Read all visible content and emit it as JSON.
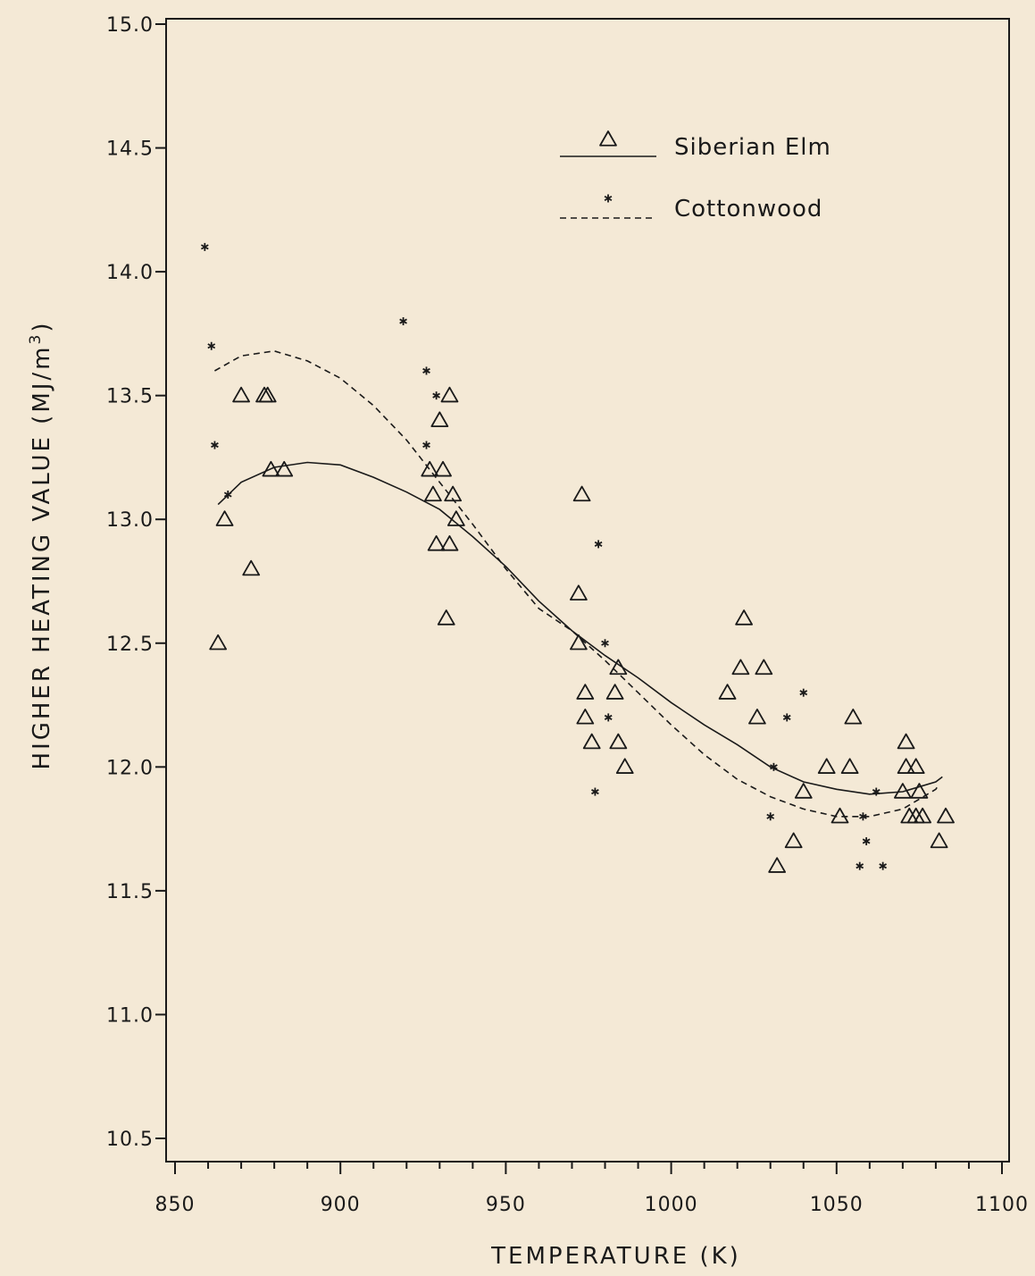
{
  "chart_data": {
    "type": "scatter",
    "xlabel": "TEMPERATURE (K)",
    "ylabel_main": "HIGHER HEATING VALUE (MJ/m",
    "ylabel_sup": "3",
    "ylabel_end": ")",
    "xlim": [
      850,
      1100
    ],
    "ylim": [
      10.5,
      15.0
    ],
    "xticks": [
      850,
      900,
      950,
      1000,
      1050,
      1100
    ],
    "xtick_labels": [
      "850",
      "900",
      "950",
      "1000",
      "1050",
      "1100"
    ],
    "yticks": [
      10.5,
      11.0,
      11.5,
      12.0,
      12.5,
      13.0,
      13.5,
      14.0,
      14.5,
      15.0
    ],
    "ytick_labels": [
      "10.5",
      "11.0",
      "11.5",
      "12.0",
      "12.5",
      "13.0",
      "13.5",
      "14.0",
      "14.5",
      "15.0"
    ],
    "grid": false,
    "legend_position": "top-right",
    "series": [
      {
        "name": "Siberian Elm",
        "marker": "triangle",
        "line": "solid",
        "points": [
          [
            863,
            12.5
          ],
          [
            865,
            13.0
          ],
          [
            870,
            13.5
          ],
          [
            873,
            12.8
          ],
          [
            877,
            13.5
          ],
          [
            878,
            13.5
          ],
          [
            879,
            13.2
          ],
          [
            883,
            13.2
          ],
          [
            927,
            13.2
          ],
          [
            928,
            13.1
          ],
          [
            929,
            12.9
          ],
          [
            930,
            13.4
          ],
          [
            931,
            13.2
          ],
          [
            932,
            12.6
          ],
          [
            933,
            13.5
          ],
          [
            933,
            12.9
          ],
          [
            934,
            13.1
          ],
          [
            935,
            13.0
          ],
          [
            972,
            12.7
          ],
          [
            973,
            13.1
          ],
          [
            972,
            12.5
          ],
          [
            974,
            12.3
          ],
          [
            974,
            12.2
          ],
          [
            976,
            12.1
          ],
          [
            983,
            12.3
          ],
          [
            984,
            12.1
          ],
          [
            984,
            12.4
          ],
          [
            986,
            12.0
          ],
          [
            1017,
            12.3
          ],
          [
            1021,
            12.4
          ],
          [
            1022,
            12.6
          ],
          [
            1026,
            12.2
          ],
          [
            1028,
            12.4
          ],
          [
            1032,
            11.6
          ],
          [
            1037,
            11.7
          ],
          [
            1040,
            11.9
          ],
          [
            1047,
            12.0
          ],
          [
            1051,
            11.8
          ],
          [
            1054,
            12.0
          ],
          [
            1055,
            12.2
          ],
          [
            1070,
            11.9
          ],
          [
            1071,
            12.1
          ],
          [
            1071,
            12.0
          ],
          [
            1072,
            11.8
          ],
          [
            1074,
            12.0
          ],
          [
            1074,
            11.8
          ],
          [
            1075,
            11.9
          ],
          [
            1076,
            11.8
          ],
          [
            1081,
            11.7
          ],
          [
            1083,
            11.8
          ]
        ],
        "fit": [
          [
            863,
            13.06
          ],
          [
            870,
            13.15
          ],
          [
            880,
            13.21
          ],
          [
            890,
            13.23
          ],
          [
            900,
            13.22
          ],
          [
            910,
            13.17
          ],
          [
            920,
            13.11
          ],
          [
            930,
            13.04
          ],
          [
            940,
            12.93
          ],
          [
            950,
            12.81
          ],
          [
            960,
            12.67
          ],
          [
            970,
            12.55
          ],
          [
            980,
            12.45
          ],
          [
            990,
            12.36
          ],
          [
            1000,
            12.26
          ],
          [
            1010,
            12.17
          ],
          [
            1020,
            12.09
          ],
          [
            1030,
            12.0
          ],
          [
            1040,
            11.94
          ],
          [
            1050,
            11.91
          ],
          [
            1060,
            11.89
          ],
          [
            1070,
            11.9
          ],
          [
            1080,
            11.94
          ],
          [
            1082,
            11.96
          ]
        ]
      },
      {
        "name": "Cottonwood",
        "marker": "star",
        "line": "dashed",
        "points": [
          [
            859,
            14.1
          ],
          [
            861,
            13.7
          ],
          [
            862,
            13.3
          ],
          [
            866,
            13.1
          ],
          [
            919,
            13.8
          ],
          [
            926,
            13.6
          ],
          [
            926,
            13.3
          ],
          [
            929,
            13.5
          ],
          [
            978,
            12.9
          ],
          [
            980,
            12.5
          ],
          [
            981,
            12.2
          ],
          [
            977,
            11.9
          ],
          [
            1030,
            11.8
          ],
          [
            1031,
            12.0
          ],
          [
            1035,
            12.2
          ],
          [
            1040,
            12.3
          ],
          [
            1057,
            11.6
          ],
          [
            1058,
            11.8
          ],
          [
            1059,
            11.7
          ],
          [
            1062,
            11.9
          ],
          [
            1064,
            11.6
          ]
        ],
        "fit": [
          [
            862,
            13.6
          ],
          [
            870,
            13.66
          ],
          [
            880,
            13.68
          ],
          [
            890,
            13.64
          ],
          [
            900,
            13.57
          ],
          [
            910,
            13.46
          ],
          [
            920,
            13.32
          ],
          [
            930,
            13.15
          ],
          [
            940,
            12.98
          ],
          [
            950,
            12.8
          ],
          [
            960,
            12.64
          ],
          [
            970,
            12.55
          ],
          [
            980,
            12.43
          ],
          [
            990,
            12.3
          ],
          [
            1000,
            12.17
          ],
          [
            1010,
            12.05
          ],
          [
            1020,
            11.95
          ],
          [
            1030,
            11.88
          ],
          [
            1040,
            11.83
          ],
          [
            1050,
            11.8
          ],
          [
            1060,
            11.8
          ],
          [
            1070,
            11.83
          ],
          [
            1080,
            11.91
          ],
          [
            1081,
            11.93
          ]
        ]
      }
    ]
  }
}
